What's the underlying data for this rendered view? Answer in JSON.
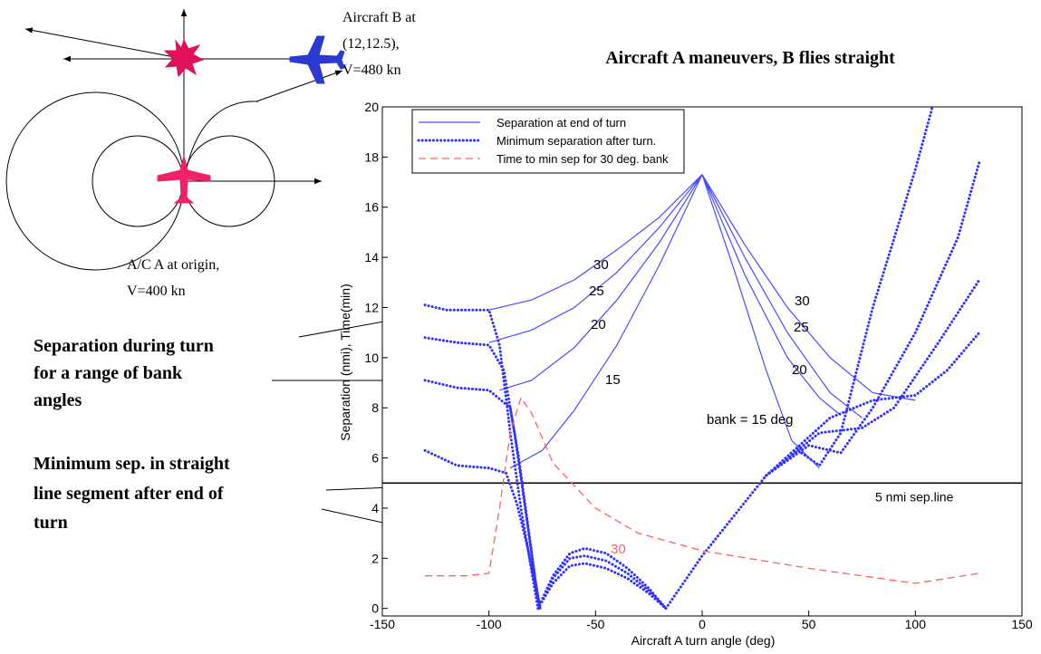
{
  "diagram": {
    "aircraft_b": [
      "Aircraft B at",
      "(12,12.5),",
      "V=480 kn"
    ],
    "aircraft_a": [
      "A/C A at origin,",
      "V=400 kn"
    ]
  },
  "notes": [
    [
      "Separation during  turn",
      "for a range of bank",
      "angles"
    ],
    [
      "Minimum sep. in straight",
      "line segment after end of",
      "turn"
    ]
  ],
  "chart_data": {
    "type": "line",
    "title": "Aircraft A maneuvers, B flies straight",
    "x_label": "Aircraft A turn angle (deg)",
    "y_label": "Separation (nmi), Time(min)",
    "xlim": [
      -150,
      150
    ],
    "ylim": [
      -0.3,
      20
    ],
    "xticks": [
      -150,
      -100,
      -50,
      0,
      50,
      100,
      150
    ],
    "yticks": [
      0,
      2,
      4,
      6,
      8,
      10,
      12,
      14,
      16,
      18,
      20
    ],
    "legend": "upper left",
    "grid": false,
    "series": [
      {
        "name": "Separation at end of turn",
        "color": "#4a4aff",
        "style": "solid",
        "x": [
          0,
          -20,
          -40,
          -60,
          -80,
          -100,
          null,
          0,
          -20,
          -40,
          -60,
          -80,
          -100,
          null,
          0,
          -20,
          -40,
          -60,
          -80,
          -95,
          null,
          0,
          -20,
          -40,
          -60,
          -75,
          -90,
          null,
          0,
          20,
          40,
          60,
          80,
          100,
          null,
          0,
          20,
          40,
          60,
          75,
          null,
          0,
          20,
          40,
          55,
          65,
          null,
          0,
          15,
          30,
          42,
          55
        ],
        "values": [
          17.3,
          15.6,
          14.3,
          13.1,
          12.3,
          11.9,
          null,
          17.3,
          15.2,
          13.4,
          12.0,
          11.1,
          10.6,
          null,
          17.3,
          14.6,
          12.3,
          10.4,
          9.1,
          8.7,
          null,
          17.3,
          13.7,
          10.5,
          7.9,
          6.3,
          5.6,
          null,
          17.3,
          14.5,
          12,
          10,
          8.6,
          8.3,
          null,
          17.3,
          14,
          11,
          8.6,
          7.6,
          null,
          17.3,
          13.3,
          10,
          8.4,
          7.7,
          null,
          17.3,
          13.5,
          9.5,
          6.7,
          5.6
        ]
      },
      {
        "name": "Minimum separation after turn.",
        "color": "#3030ff",
        "style": "dotted",
        "x": [
          -130,
          -120,
          -110,
          -100,
          -95,
          -90,
          -85,
          -80,
          -77,
          null,
          -130,
          -115,
          -100,
          -93,
          -88,
          -83,
          -78,
          -76,
          null,
          -130,
          -115,
          -100,
          -90,
          -86,
          -82,
          -78,
          -76,
          null,
          -130,
          -115,
          -100,
          -92,
          -87,
          -82,
          -78,
          -76,
          null,
          -77,
          -70,
          -62,
          -55,
          -45,
          -35,
          -25,
          -17,
          null,
          -77,
          -70,
          -62,
          -55,
          -45,
          -35,
          -25,
          -17,
          null,
          -77,
          -70,
          -62,
          -55,
          -45,
          -35,
          -25,
          -17,
          null,
          -17,
          0,
          15,
          30,
          45,
          55,
          65,
          80,
          100,
          108,
          null,
          30,
          50,
          65,
          80,
          100,
          120,
          130,
          null,
          30,
          55,
          75,
          90,
          110,
          130,
          null,
          30,
          60,
          80,
          100,
          115,
          130
        ],
        "values": [
          12.1,
          11.9,
          11.9,
          11.9,
          10.5,
          7,
          4,
          1.5,
          0,
          null,
          10.8,
          10.6,
          10.5,
          9.5,
          7,
          4,
          1,
          0,
          null,
          9.1,
          8.8,
          8.7,
          8,
          6,
          3.5,
          1,
          0,
          null,
          6.3,
          5.7,
          5.6,
          5.4,
          4.2,
          2.5,
          0.8,
          0,
          null,
          0,
          1.3,
          2.2,
          2.4,
          2.2,
          1.6,
          0.8,
          0,
          null,
          0,
          1.2,
          2.0,
          2.1,
          1.9,
          1.4,
          0.7,
          0,
          null,
          0,
          1.0,
          1.7,
          1.8,
          1.6,
          1.2,
          0.6,
          0,
          null,
          0,
          2.1,
          3.7,
          5.3,
          6.3,
          5.7,
          7,
          12,
          17.5,
          20,
          null,
          5.3,
          6.5,
          6.2,
          8,
          11,
          14.8,
          17.8,
          null,
          5.3,
          7,
          7.2,
          8,
          10.5,
          13.1,
          null,
          5.3,
          7.6,
          8.3,
          8.5,
          9.5,
          11
        ]
      },
      {
        "name": "Time to min sep for 30 deg. bank",
        "color": "#ff6060",
        "style": "dashed",
        "x": [
          -130,
          -110,
          -100,
          -95,
          -90,
          -85,
          -80,
          -70,
          -50,
          -30,
          0,
          50,
          100,
          130
        ],
        "values": [
          1.3,
          1.3,
          1.4,
          4,
          7,
          8.4,
          7.8,
          5.8,
          4,
          3,
          2.3,
          1.6,
          1.0,
          1.4
        ]
      }
    ],
    "curve_labels": [
      "30",
      "25",
      "20",
      "15",
      "30",
      "25",
      "20",
      "bank = 15 deg",
      "30"
    ],
    "hlines": [
      {
        "value": 5,
        "label": "5 nmi sep.line",
        "color": "#000000"
      }
    ]
  }
}
